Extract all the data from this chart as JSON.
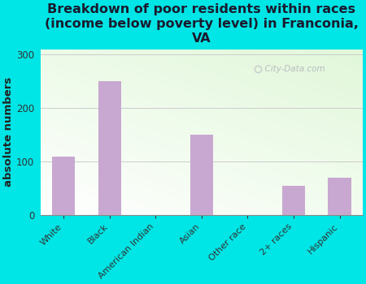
{
  "categories": [
    "White",
    "Black",
    "American Indian",
    "Asian",
    "Other race",
    "2+ races",
    "Hispanic"
  ],
  "values": [
    110,
    250,
    0,
    150,
    0,
    55,
    70
  ],
  "bar_color": "#C8A8D0",
  "title": "Breakdown of poor residents within races\n(income below poverty level) in Franconia,\nVA",
  "ylabel": "absolute numbers",
  "ylim": [
    0,
    310
  ],
  "yticks": [
    0,
    100,
    200,
    300
  ],
  "background_color": "#00E5E5",
  "plot_bg_colors": [
    "#f0f5e8",
    "#e8f2d8",
    "#f8faf0"
  ],
  "watermark": "  City-Data.com",
  "title_fontsize": 11.5,
  "title_color": "#1a1a2e",
  "ylabel_fontsize": 9.5,
  "grid_color": "#cccccc",
  "bar_edge_color": "none"
}
